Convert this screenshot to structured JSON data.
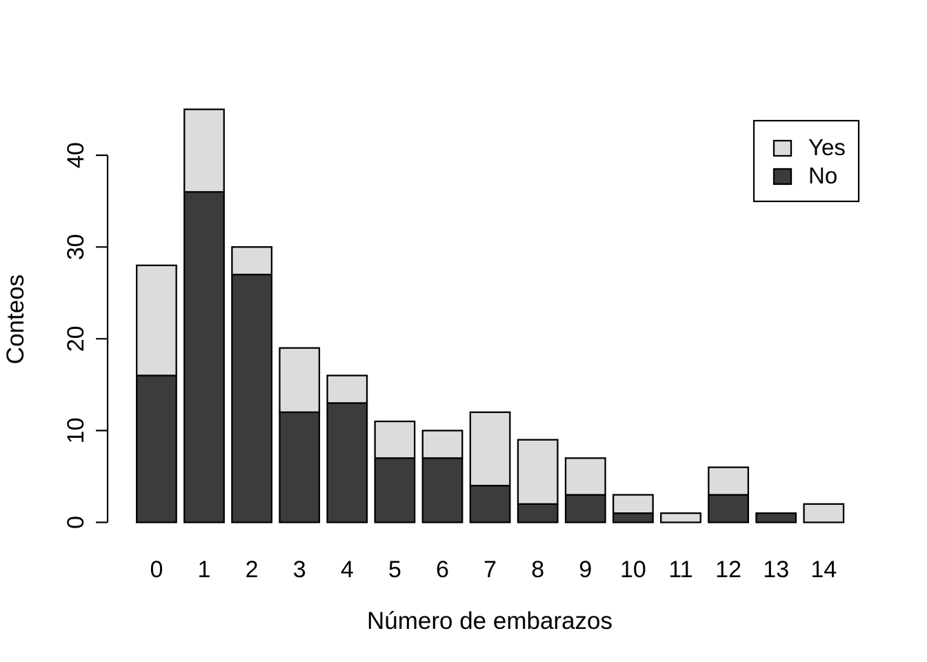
{
  "chart_data": {
    "type": "bar",
    "stacked": true,
    "orientation": "vertical",
    "title": "",
    "xlabel": "Número de embarazos",
    "ylabel": "Conteos",
    "categories": [
      "0",
      "1",
      "2",
      "3",
      "4",
      "5",
      "6",
      "7",
      "8",
      "9",
      "10",
      "11",
      "12",
      "13",
      "14"
    ],
    "series": [
      {
        "name": "Yes",
        "color": "#DCDCDC",
        "values": [
          12,
          9,
          3,
          7,
          3,
          4,
          3,
          8,
          7,
          4,
          2,
          1,
          3,
          0,
          2
        ]
      },
      {
        "name": "No",
        "color": "#3C3C3C",
        "values": [
          16,
          36,
          27,
          12,
          13,
          7,
          7,
          4,
          2,
          3,
          1,
          0,
          3,
          1,
          0
        ]
      }
    ],
    "stack_bottom_to_top": [
      "No",
      "Yes"
    ],
    "totals": [
      28,
      45,
      30,
      19,
      16,
      11,
      10,
      12,
      9,
      7,
      3,
      1,
      6,
      1,
      2
    ],
    "ylim": [
      0,
      45
    ],
    "yticks": [
      0,
      10,
      20,
      30,
      40
    ],
    "grid": false,
    "legend": {
      "position": "top-right",
      "border": true,
      "entries": [
        {
          "label": "Yes",
          "color": "#DCDCDC"
        },
        {
          "label": "No",
          "color": "#3C3C3C"
        }
      ]
    },
    "colors": {
      "bar_border": "#000000",
      "axis": "#000000",
      "text": "#000000",
      "background": "#FFFFFF"
    }
  }
}
